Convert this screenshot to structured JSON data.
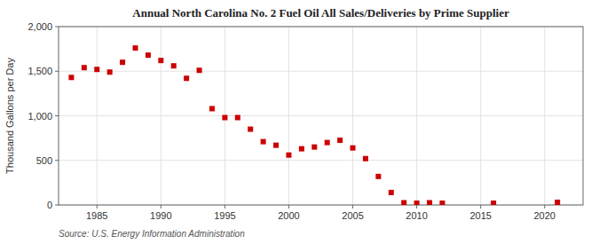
{
  "chart_data": {
    "type": "scatter",
    "title": "Annual North Carolina No. 2 Fuel Oil All Sales/Deliveries by Prime Supplier",
    "ylabel": "Thousand Gallons per Day",
    "annotations": [
      "Source: U.S. Energy Information Administration"
    ],
    "color": "#cc0000",
    "marker": "square",
    "grid": true,
    "x": [
      1983,
      1984,
      1985,
      1986,
      1987,
      1988,
      1989,
      1990,
      1991,
      1992,
      1993,
      1994,
      1995,
      1996,
      1997,
      1998,
      1999,
      2000,
      2001,
      2002,
      2003,
      2004,
      2005,
      2006,
      2007,
      2008,
      2009,
      2010,
      2011,
      2012,
      2016,
      2021
    ],
    "values": [
      1430,
      1540,
      1520,
      1490,
      1600,
      1760,
      1680,
      1620,
      1560,
      1420,
      1510,
      1080,
      980,
      980,
      850,
      710,
      670,
      560,
      630,
      650,
      700,
      725,
      640,
      520,
      320,
      140,
      25,
      20,
      25,
      20,
      20,
      30
    ],
    "xlim": [
      1982,
      2023
    ],
    "ylim": [
      0,
      2000
    ],
    "xticks": [
      1985,
      1990,
      1995,
      2000,
      2005,
      2010,
      2015,
      2020
    ],
    "yticks": [
      0,
      500,
      {
        "value": 1000,
        "label": "1,000"
      },
      {
        "value": 1500,
        "label": "1,500"
      },
      {
        "value": 2000,
        "label": "2,000"
      }
    ]
  }
}
